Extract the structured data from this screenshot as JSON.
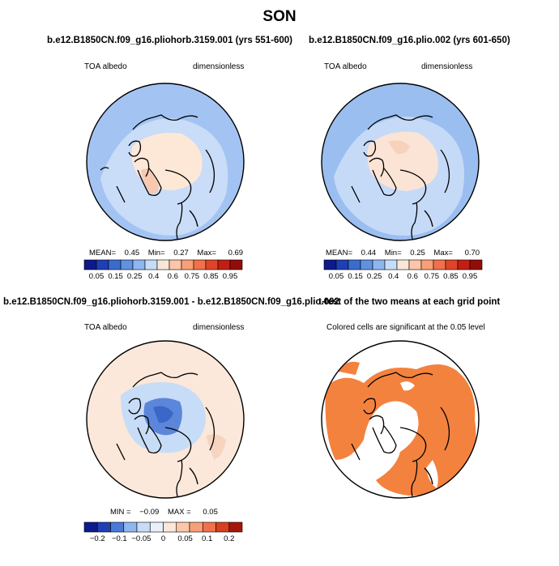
{
  "title": "SON",
  "panels": [
    {
      "id": "p1",
      "title": "b.e12.B1850CN.f09_g16.pliohorb.3159.001 (yrs 551-600)",
      "left_label": "TOA albedo",
      "right_label": "dimensionless",
      "stats": {
        "mean_label": "MEAN=",
        "mean": "0.45",
        "min_label": "Min=",
        "min": "0.27",
        "max_label": "Max=",
        "max": "0.69"
      },
      "colorbar": {
        "colors": [
          "#0d1a8c",
          "#1f3fb4",
          "#3a6ccf",
          "#5f92e0",
          "#8eb6ef",
          "#c7dcf7",
          "#f9e6d8",
          "#fcc6a8",
          "#f99f78",
          "#f0714a",
          "#e04428",
          "#c21f14",
          "#920d0a"
        ],
        "ticks": [
          "0.05",
          "0.15",
          "0.25",
          "0.4",
          "0.6",
          "0.75",
          "0.85",
          "0.95"
        ]
      }
    },
    {
      "id": "p2",
      "title": "b.e12.B1850CN.f09_g16.plio.002 (yrs 601-650)",
      "left_label": "TOA albedo",
      "right_label": "dimensionless",
      "stats": {
        "mean_label": "MEAN=",
        "mean": "0.44",
        "min_label": "Min=",
        "min": "0.25",
        "max_label": "Max=",
        "max": "0.70"
      },
      "colorbar": {
        "colors": [
          "#0d1a8c",
          "#1f3fb4",
          "#3a6ccf",
          "#5f92e0",
          "#8eb6ef",
          "#c7dcf7",
          "#f9e6d8",
          "#fcc6a8",
          "#f99f78",
          "#f0714a",
          "#e04428",
          "#c21f14",
          "#920d0a"
        ],
        "ticks": [
          "0.05",
          "0.15",
          "0.25",
          "0.4",
          "0.6",
          "0.75",
          "0.85",
          "0.95"
        ]
      }
    },
    {
      "id": "p3",
      "title": "b.e12.B1850CN.f09_g16.pliohorb.3159.001 - b.e12.B1850CN.f09_g16.plio.002",
      "left_label": "TOA albedo",
      "right_label": "dimensionless",
      "stats": {
        "min_label": "MIN =",
        "min": "−0.09",
        "max_label": "MAX =",
        "max": "0.05"
      },
      "colorbar": {
        "colors": [
          "#0d1a8c",
          "#1f3fb4",
          "#4a7ad8",
          "#8eb6ef",
          "#c7dcf7",
          "#e8f0fb",
          "#fbe7d9",
          "#fcc6a8",
          "#f99f78",
          "#f0714a",
          "#d6401e",
          "#a81509"
        ],
        "ticks": [
          "−0.2",
          "−0.1",
          "−0.05",
          "0",
          "0.05",
          "0.1",
          "0.2"
        ]
      }
    },
    {
      "id": "p4",
      "title": "t-test of the two means at each grid point",
      "subtitle": "Colored cells are significant at the 0.05 level"
    }
  ],
  "colors": {
    "p1_ocean": "#a3c4f3",
    "p1_land": "#c9dcf8",
    "p1_center": "#fde8d8",
    "p2_ocean": "#9bbef1",
    "p2_land": "#c5daf7",
    "p2_center": "#fbe4d6",
    "p3_base": "#fbe8da",
    "p3_blue": "#c7dcf7",
    "p3_darkblue": "#5c86d9",
    "p4_sig": "#f3823f"
  }
}
